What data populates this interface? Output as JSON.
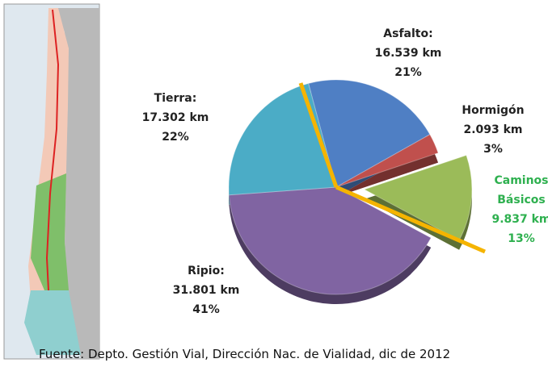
{
  "chart_data": {
    "type": "pie",
    "categories": [
      "Asfalto:",
      "Hormigón",
      "Caminos Básicos",
      "Ripio:",
      "Tierra:"
    ],
    "values": [
      21,
      3,
      13,
      41,
      22
    ],
    "value_labels": [
      "21%",
      "3%",
      "13%",
      "41%",
      "22%"
    ],
    "km_labels": [
      "16.539 km",
      "2.093 km",
      "9.837 km",
      "31.801 km",
      "17.302 km"
    ],
    "colors": [
      "#4f7fc4",
      "#c0504d",
      "#9bbb59",
      "#8064a2",
      "#4bacc6"
    ],
    "exploded": [
      false,
      false,
      true,
      false,
      false
    ],
    "source": "Fuente: Depto. Gestión Vial, Dirección Nac. de Vialidad, dic de 2012"
  }
}
